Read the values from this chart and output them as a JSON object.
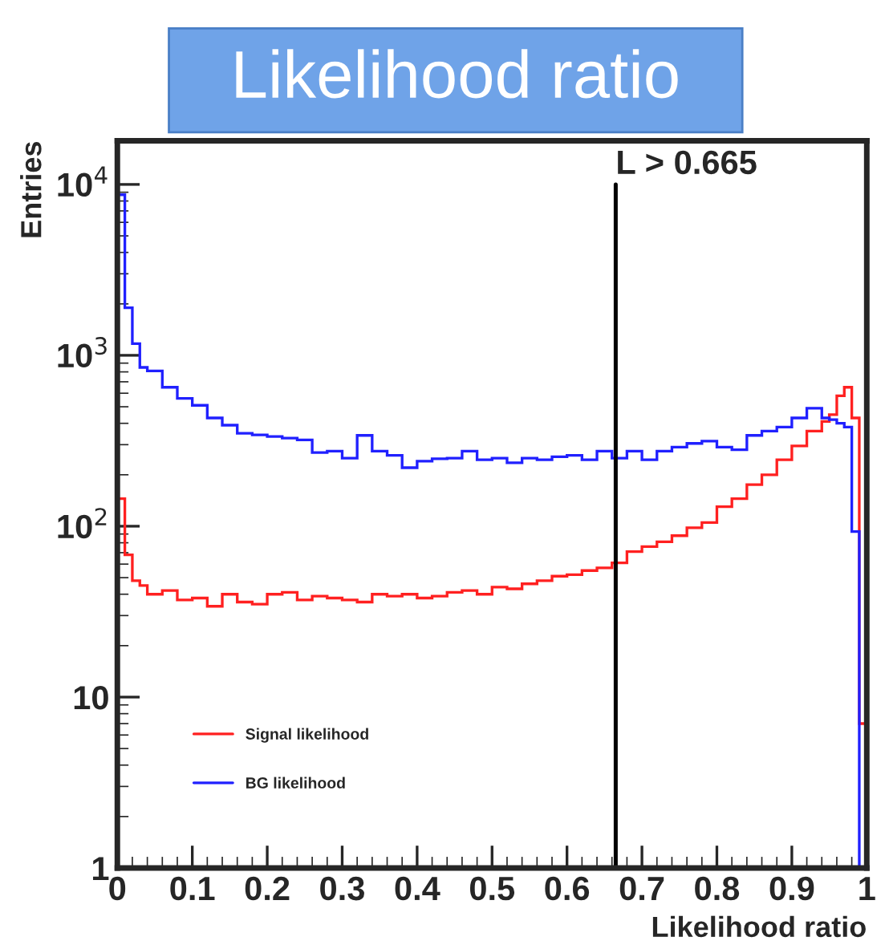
{
  "chart_data": {
    "type": "histogram",
    "title": "Likelihood ratio",
    "xlabel": "Likelihood ratio",
    "ylabel": "Entries",
    "bins": [
      0,
      0.01,
      0.02,
      0.03,
      0.04,
      0.06,
      0.08,
      0.1,
      0.12,
      0.14,
      0.16,
      0.18,
      0.2,
      0.22,
      0.24,
      0.26,
      0.28,
      0.3,
      0.32,
      0.34,
      0.36,
      0.38,
      0.4,
      0.42,
      0.44,
      0.46,
      0.48,
      0.5,
      0.52,
      0.54,
      0.56,
      0.58,
      0.6,
      0.62,
      0.64,
      0.66,
      0.68,
      0.7,
      0.72,
      0.74,
      0.76,
      0.78,
      0.8,
      0.82,
      0.84,
      0.86,
      0.88,
      0.9,
      0.92,
      0.94,
      0.95,
      0.96,
      0.97,
      0.98,
      0.99,
      1.0
    ],
    "series": [
      {
        "name": "Signal likelihood",
        "color": "#ff2020",
        "values": [
          145,
          68,
          48,
          45,
          40,
          42,
          37,
          38,
          34,
          40,
          36,
          35,
          40,
          41,
          37,
          39,
          38,
          37,
          36,
          40,
          39,
          40,
          38,
          39,
          41,
          42,
          40,
          44,
          43,
          46,
          48,
          51,
          52,
          55,
          57,
          61,
          71,
          76,
          81,
          88,
          98,
          105,
          130,
          145,
          175,
          200,
          245,
          295,
          360,
          410,
          450,
          580,
          650,
          430,
          7
        ]
      },
      {
        "name": "BG likelihood",
        "color": "#2020ff",
        "values": [
          8700,
          1900,
          1170,
          850,
          810,
          650,
          560,
          510,
          430,
          390,
          350,
          342,
          335,
          328,
          320,
          270,
          275,
          250,
          340,
          275,
          260,
          220,
          240,
          248,
          250,
          275,
          245,
          250,
          235,
          250,
          245,
          255,
          260,
          245,
          275,
          250,
          275,
          245,
          275,
          290,
          305,
          315,
          290,
          280,
          340,
          360,
          380,
          430,
          490,
          430,
          420,
          400,
          380,
          93,
          1
        ]
      }
    ],
    "log": "y",
    "xlim": [
      0,
      1
    ],
    "ylim": [
      1,
      18000
    ],
    "xticks": [
      0,
      0.1,
      0.2,
      0.3,
      0.4,
      0.5,
      0.6,
      0.7,
      0.8,
      0.9,
      1
    ],
    "yticks": [
      1,
      10,
      {
        "value": 100,
        "label": "10$^{2}$"
      },
      {
        "value": 1000,
        "label": "10$^{3}$"
      },
      {
        "value": 10000,
        "label": "10$^{4}$"
      }
    ],
    "ref_lines": [
      {
        "axis": "x",
        "value": 0.665,
        "label": "L > 0.665",
        "color": "#000000"
      }
    ],
    "legend": "bottom left",
    "grid": false
  }
}
